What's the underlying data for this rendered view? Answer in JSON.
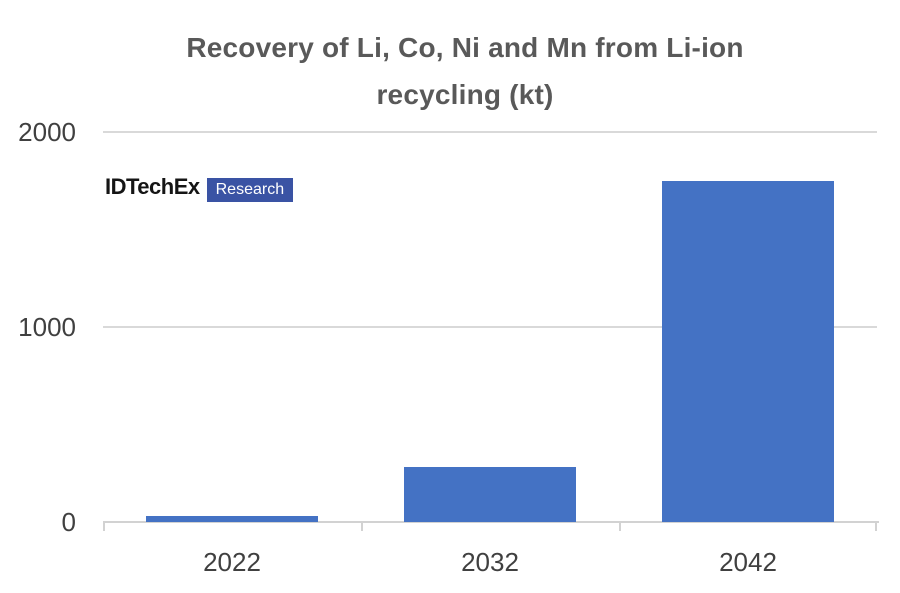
{
  "title": {
    "line1": "Recovery of Li, Co, Ni and Mn from Li-ion",
    "line2": "recycling (kt)"
  },
  "logo": {
    "brand": "IDTechEx",
    "suffix": "Research",
    "brand_color": "#151515",
    "accent_color": "#3a53a4"
  },
  "chart_data": {
    "type": "bar",
    "title": "Recovery of Li, Co, Ni and Mn from Li-ion recycling (kt)",
    "categories": [
      "2022",
      "2032",
      "2042"
    ],
    "values": [
      30,
      280,
      1750
    ],
    "xlabel": "",
    "ylabel": "",
    "ylim": [
      0,
      2000
    ],
    "yticks": [
      0,
      1000,
      2000
    ],
    "grid": true,
    "legend_position": "none",
    "bar_color": "#4472c4",
    "gridline_color": "#d9d9d9",
    "axis_color": "#d2d2d2",
    "tick_label_color": "#404040",
    "title_color": "#595959"
  }
}
